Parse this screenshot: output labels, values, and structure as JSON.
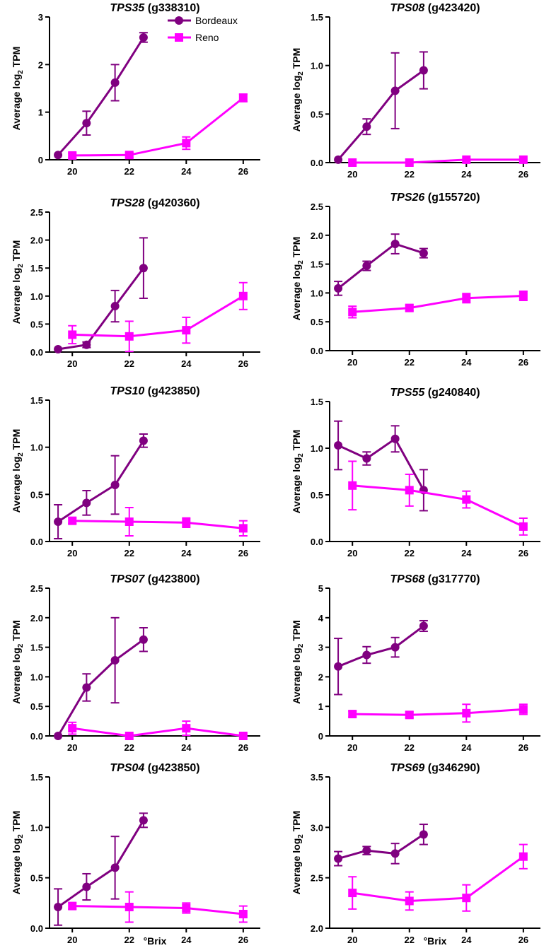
{
  "colors": {
    "bordeaux": "#800080",
    "reno": "#ff00ff",
    "axis": "#000000"
  },
  "legend": {
    "bordeaux": "Bordeaux",
    "reno": "Reno"
  },
  "y_label_prefix": "Average log",
  "y_label_sub": "2",
  "y_label_suffix": " TPM",
  "x_label": "°Brix",
  "chart_data": [
    {
      "type": "line",
      "gene": "TPS35",
      "id": "(g338310)",
      "ylim": [
        0,
        3
      ],
      "yticks": [
        "0",
        "1",
        "2",
        "3"
      ],
      "xlim": [
        19.2,
        26.6
      ],
      "xticks": [
        "20",
        "22",
        "24",
        "26"
      ],
      "series": [
        {
          "name": "Bordeaux",
          "x": [
            19.5,
            20.5,
            21.5,
            22.5
          ],
          "y": [
            0.1,
            0.77,
            1.62,
            2.57
          ],
          "err": [
            0.0,
            0.25,
            0.38,
            0.1
          ]
        },
        {
          "name": "Reno",
          "x": [
            20,
            22,
            24,
            26
          ],
          "y": [
            0.09,
            0.1,
            0.35,
            1.3
          ],
          "err": [
            0.05,
            0.05,
            0.13,
            0.08
          ]
        }
      ]
    },
    {
      "type": "line",
      "gene": "TPS08",
      "id": "(g423420)",
      "ylim": [
        0,
        1.5
      ],
      "yticks": [
        "0.0",
        "0.5",
        "1.0",
        "1.5"
      ],
      "xlim": [
        19.2,
        26.6
      ],
      "xticks": [
        "20",
        "22",
        "24",
        "26"
      ],
      "series": [
        {
          "name": "Bordeaux",
          "x": [
            19.5,
            20.5,
            21.5,
            22.5
          ],
          "y": [
            0.03,
            0.37,
            0.74,
            0.95
          ],
          "err": [
            0.0,
            0.08,
            0.39,
            0.19
          ]
        },
        {
          "name": "Reno",
          "x": [
            20,
            22,
            24,
            26
          ],
          "y": [
            0.0,
            0.0,
            0.03,
            0.03
          ],
          "err": [
            0.0,
            0.0,
            0.0,
            0.0
          ]
        }
      ]
    },
    {
      "type": "line",
      "gene": "TPS28",
      "id": "(g420360)",
      "ylim": [
        0,
        2.5
      ],
      "yticks": [
        "0.0",
        "0.5",
        "1.0",
        "1.5",
        "2.0",
        "2.5"
      ],
      "xlim": [
        19.2,
        26.6
      ],
      "xticks": [
        "20",
        "22",
        "24",
        "26"
      ],
      "series": [
        {
          "name": "Bordeaux",
          "x": [
            19.5,
            20.5,
            21.5,
            22.5
          ],
          "y": [
            0.05,
            0.13,
            0.82,
            1.5
          ],
          "err": [
            0.0,
            0.05,
            0.28,
            0.54
          ]
        },
        {
          "name": "Reno",
          "x": [
            20,
            22,
            24,
            26
          ],
          "y": [
            0.31,
            0.28,
            0.39,
            1.0
          ],
          "err": [
            0.16,
            0.27,
            0.23,
            0.24
          ]
        }
      ]
    },
    {
      "type": "line",
      "gene": "TPS26",
      "id": "(g155720)",
      "ylim": [
        0,
        2.5
      ],
      "yticks": [
        "0.0",
        "0.5",
        "1.0",
        "1.5",
        "2.0",
        "2.5"
      ],
      "xlim": [
        19.2,
        26.6
      ],
      "xticks": [
        "20",
        "22",
        "24",
        "26"
      ],
      "series": [
        {
          "name": "Bordeaux",
          "x": [
            19.5,
            20.5,
            21.5,
            22.5
          ],
          "y": [
            1.08,
            1.47,
            1.85,
            1.69
          ],
          "err": [
            0.12,
            0.08,
            0.17,
            0.08
          ]
        },
        {
          "name": "Reno",
          "x": [
            20,
            22,
            24,
            26
          ],
          "y": [
            0.67,
            0.74,
            0.91,
            0.95
          ],
          "err": [
            0.1,
            0.05,
            0.08,
            0.08
          ]
        }
      ]
    },
    {
      "type": "line",
      "gene": "TPS10",
      "id": "(g423850)",
      "ylim": [
        0,
        1.5
      ],
      "yticks": [
        "0.0",
        "0.5",
        "1.0",
        "1.5"
      ],
      "xlim": [
        19.2,
        26.6
      ],
      "xticks": [
        "20",
        "22",
        "24",
        "26"
      ],
      "series": [
        {
          "name": "Bordeaux",
          "x": [
            19.5,
            20.5,
            21.5,
            22.5
          ],
          "y": [
            0.21,
            0.41,
            0.6,
            1.07
          ],
          "err": [
            0.18,
            0.13,
            0.31,
            0.07
          ]
        },
        {
          "name": "Reno",
          "x": [
            20,
            22,
            24,
            26
          ],
          "y": [
            0.22,
            0.21,
            0.2,
            0.14
          ],
          "err": [
            0.03,
            0.15,
            0.05,
            0.08
          ]
        }
      ]
    },
    {
      "type": "line",
      "gene": "TPS55",
      "id": "(g240840)",
      "ylim": [
        0,
        1.5
      ],
      "yticks": [
        "0.0",
        "0.5",
        "1.0",
        "1.5"
      ],
      "xlim": [
        19.2,
        26.6
      ],
      "xticks": [
        "20",
        "22",
        "24",
        "26"
      ],
      "series": [
        {
          "name": "Bordeaux",
          "x": [
            19.5,
            20.5,
            21.5,
            22.5
          ],
          "y": [
            1.03,
            0.89,
            1.1,
            0.55
          ],
          "err": [
            0.26,
            0.07,
            0.14,
            0.22
          ]
        },
        {
          "name": "Reno",
          "x": [
            20,
            22,
            24,
            26
          ],
          "y": [
            0.6,
            0.55,
            0.45,
            0.16
          ],
          "err": [
            0.26,
            0.17,
            0.09,
            0.09
          ]
        }
      ]
    },
    {
      "type": "line",
      "gene": "TPS07",
      "id": "(g423800)",
      "ylim": [
        0,
        2.5
      ],
      "yticks": [
        "0.0",
        "0.5",
        "1.0",
        "1.5",
        "2.0",
        "2.5"
      ],
      "xlim": [
        19.2,
        26.6
      ],
      "xticks": [
        "20",
        "22",
        "24",
        "26"
      ],
      "series": [
        {
          "name": "Bordeaux",
          "x": [
            19.5,
            20.5,
            21.5,
            22.5
          ],
          "y": [
            0.0,
            0.82,
            1.28,
            1.63
          ],
          "err": [
            0.0,
            0.23,
            0.72,
            0.2
          ]
        },
        {
          "name": "Reno",
          "x": [
            20,
            22,
            24,
            26
          ],
          "y": [
            0.13,
            0.0,
            0.13,
            0.0
          ],
          "err": [
            0.1,
            0.0,
            0.12,
            0.0
          ]
        }
      ]
    },
    {
      "type": "line",
      "gene": "TPS68",
      "id": "(g317770)",
      "ylim": [
        0,
        5
      ],
      "yticks": [
        "0",
        "1",
        "2",
        "3",
        "4",
        "5"
      ],
      "xlim": [
        19.2,
        26.6
      ],
      "xticks": [
        "20",
        "22",
        "24",
        "26"
      ],
      "series": [
        {
          "name": "Bordeaux",
          "x": [
            19.5,
            20.5,
            21.5,
            22.5
          ],
          "y": [
            2.35,
            2.74,
            3.0,
            3.72
          ],
          "err": [
            0.95,
            0.28,
            0.33,
            0.18
          ]
        },
        {
          "name": "Reno",
          "x": [
            20,
            22,
            24,
            26
          ],
          "y": [
            0.74,
            0.71,
            0.77,
            0.9
          ],
          "err": [
            0.1,
            0.1,
            0.3,
            0.17
          ]
        }
      ]
    },
    {
      "type": "line",
      "gene": "TPS04",
      "id": "(g423850)",
      "ylim": [
        0,
        1.5
      ],
      "yticks": [
        "0.0",
        "0.5",
        "1.0",
        "1.5"
      ],
      "xlim": [
        19.2,
        26.6
      ],
      "xticks": [
        "20",
        "22",
        "24",
        "26"
      ],
      "series": [
        {
          "name": "Bordeaux",
          "x": [
            19.5,
            20.5,
            21.5,
            22.5
          ],
          "y": [
            0.21,
            0.41,
            0.6,
            1.07
          ],
          "err": [
            0.18,
            0.13,
            0.31,
            0.07
          ]
        },
        {
          "name": "Reno",
          "x": [
            20,
            22,
            24,
            26
          ],
          "y": [
            0.22,
            0.21,
            0.2,
            0.14
          ],
          "err": [
            0.03,
            0.15,
            0.05,
            0.08
          ]
        }
      ]
    },
    {
      "type": "line",
      "gene": "TPS69",
      "id": "(g346290)",
      "ylim": [
        2.0,
        3.5
      ],
      "yticks": [
        "2.0",
        "2.5",
        "3.0",
        "3.5"
      ],
      "xlim": [
        19.2,
        26.6
      ],
      "xticks": [
        "20",
        "22",
        "24",
        "26"
      ],
      "series": [
        {
          "name": "Bordeaux",
          "x": [
            19.5,
            20.5,
            21.5,
            22.5
          ],
          "y": [
            2.69,
            2.77,
            2.74,
            2.93
          ],
          "err": [
            0.07,
            0.04,
            0.1,
            0.1
          ]
        },
        {
          "name": "Reno",
          "x": [
            20,
            22,
            24,
            26
          ],
          "y": [
            2.35,
            2.27,
            2.3,
            2.71
          ],
          "err": [
            0.16,
            0.09,
            0.13,
            0.12
          ]
        }
      ]
    }
  ]
}
